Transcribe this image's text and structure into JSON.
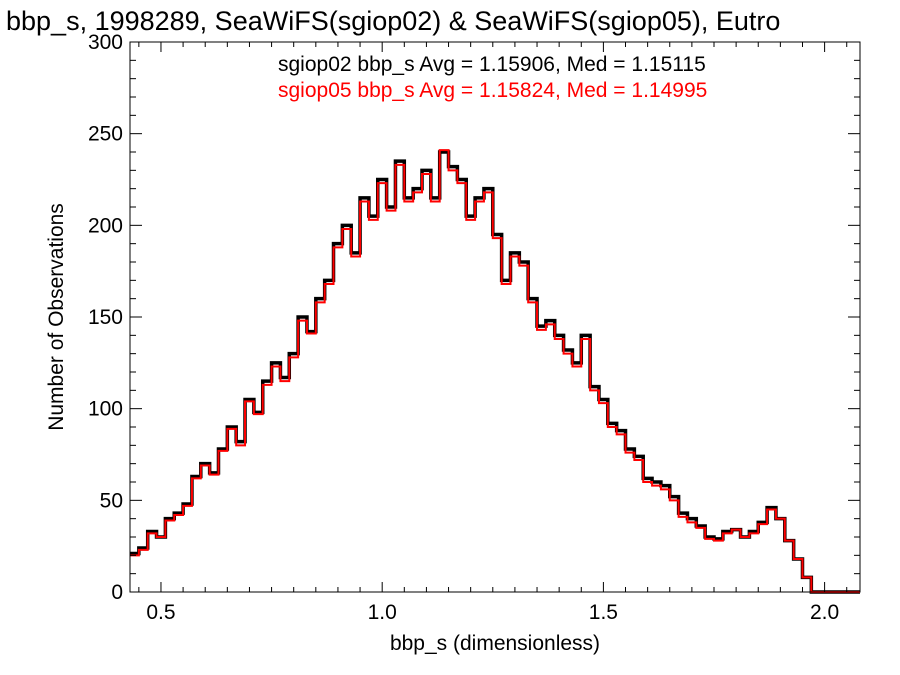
{
  "chart_data": {
    "type": "line",
    "step": true,
    "title": "bbp_s, 1998289, SeaWiFS(sgiop02) & SeaWiFS(sgiop05), Eutro",
    "xlabel": "bbp_s (dimensionless)",
    "ylabel": "Number of Observations",
    "xlim": [
      0.43,
      2.08
    ],
    "ylim": [
      0,
      300
    ],
    "xticks": [
      0.5,
      1.0,
      1.5,
      2.0
    ],
    "xtick_labels": [
      "0.5",
      "1.0",
      "1.5",
      "2.0"
    ],
    "yticks": [
      0,
      50,
      100,
      150,
      200,
      250,
      300
    ],
    "ytick_labels": [
      "0",
      "50",
      "100",
      "150",
      "200",
      "250",
      "300"
    ],
    "legend": [
      {
        "text": "sgiop02 bbp_s Avg = 1.15906, Med = 1.15115",
        "color": "#000000"
      },
      {
        "text": "sgiop05 bbp_s Avg = 1.15824, Med = 1.14995",
        "color": "#ff0000"
      }
    ],
    "x": [
      0.43,
      0.45,
      0.47,
      0.49,
      0.51,
      0.53,
      0.55,
      0.57,
      0.59,
      0.61,
      0.63,
      0.65,
      0.67,
      0.69,
      0.71,
      0.73,
      0.75,
      0.77,
      0.79,
      0.81,
      0.83,
      0.85,
      0.87,
      0.89,
      0.91,
      0.93,
      0.95,
      0.97,
      0.99,
      1.01,
      1.03,
      1.05,
      1.07,
      1.09,
      1.11,
      1.13,
      1.15,
      1.17,
      1.19,
      1.21,
      1.23,
      1.25,
      1.27,
      1.29,
      1.31,
      1.33,
      1.35,
      1.37,
      1.39,
      1.41,
      1.43,
      1.45,
      1.47,
      1.49,
      1.51,
      1.53,
      1.55,
      1.57,
      1.59,
      1.61,
      1.63,
      1.65,
      1.67,
      1.69,
      1.71,
      1.73,
      1.75,
      1.77,
      1.79,
      1.81,
      1.83,
      1.85,
      1.87,
      1.89,
      1.91,
      1.93,
      1.95,
      1.97,
      1.99,
      2.01,
      2.03,
      2.05,
      2.07
    ],
    "series": [
      {
        "name": "sgiop02",
        "color": "#000000",
        "values": [
          21,
          24,
          33,
          30,
          40,
          43,
          48,
          63,
          70,
          65,
          78,
          90,
          82,
          105,
          98,
          115,
          125,
          117,
          130,
          150,
          142,
          160,
          170,
          190,
          200,
          185,
          215,
          205,
          225,
          210,
          235,
          215,
          220,
          230,
          215,
          240,
          232,
          225,
          205,
          215,
          220,
          195,
          170,
          185,
          180,
          160,
          145,
          148,
          140,
          132,
          125,
          140,
          112,
          105,
          92,
          88,
          78,
          74,
          62,
          60,
          58,
          52,
          43,
          40,
          36,
          30,
          29,
          33,
          34,
          30,
          33,
          38,
          46,
          40,
          28,
          18,
          8,
          0,
          0,
          0,
          0,
          0,
          0
        ]
      },
      {
        "name": "sgiop05",
        "color": "#ff0000",
        "values": [
          20,
          23,
          32,
          30,
          39,
          42,
          47,
          62,
          69,
          64,
          77,
          89,
          80,
          104,
          97,
          113,
          123,
          115,
          128,
          148,
          141,
          158,
          168,
          188,
          198,
          183,
          213,
          203,
          223,
          208,
          233,
          213,
          218,
          228,
          213,
          241,
          230,
          223,
          203,
          213,
          218,
          193,
          168,
          183,
          178,
          158,
          143,
          146,
          138,
          130,
          123,
          138,
          110,
          103,
          90,
          86,
          76,
          72,
          60,
          58,
          56,
          50,
          41,
          38,
          35,
          29,
          28,
          32,
          34,
          30,
          32,
          37,
          45,
          40,
          28,
          18,
          8,
          0,
          0,
          0,
          0,
          0,
          0
        ]
      }
    ]
  }
}
